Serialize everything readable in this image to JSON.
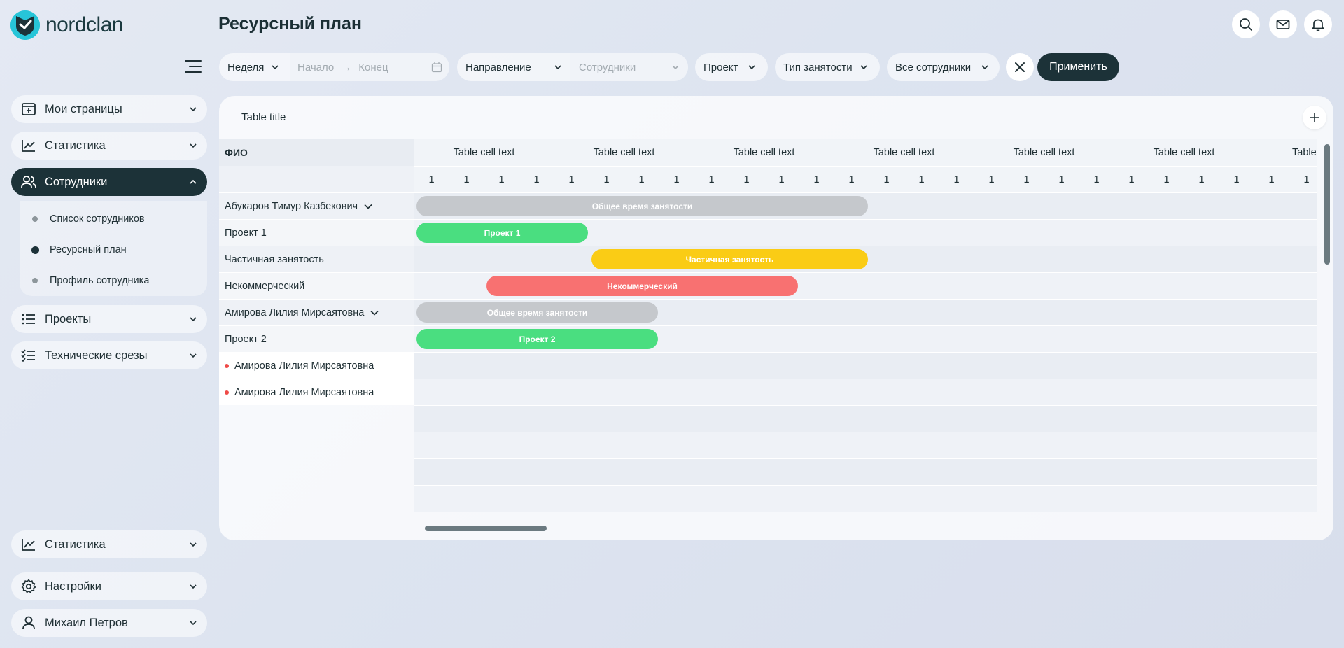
{
  "brand": {
    "name": "nordclan",
    "accent": "#27c5d8",
    "dark": "#1c3238"
  },
  "page": {
    "title": "Ресурсный план"
  },
  "sidebar": {
    "items": [
      {
        "label": "Мои страницы",
        "icon": "add-page-icon"
      },
      {
        "label": "Статистика",
        "icon": "chart-line-icon"
      },
      {
        "label": "Сотрудники",
        "icon": "users-icon",
        "active": true
      },
      {
        "label": "Проекты",
        "icon": "list-icon"
      },
      {
        "label": "Технические срезы",
        "icon": "checklist-icon"
      }
    ],
    "subitems": [
      {
        "label": "Список сотрудников"
      },
      {
        "label": "Ресурсный план",
        "current": true
      },
      {
        "label": "Профиль сотрудника"
      }
    ],
    "bottom": [
      {
        "label": "Статистика",
        "icon": "chart-line-icon"
      },
      {
        "label": "Настройки",
        "icon": "gear-icon"
      },
      {
        "label": "Михаил Петров",
        "icon": "user-icon"
      }
    ]
  },
  "filters": {
    "period": "Неделя",
    "start_placeholder": "Начало",
    "end_placeholder": "Конец",
    "direction": "Направление",
    "employees_placeholder": "Сотрудники",
    "project": "Проект",
    "employment_type": "Тип занятости",
    "all_employees": "Все сотрудники",
    "apply": "Применить"
  },
  "table": {
    "title": "Table title",
    "name_header": "ФИО",
    "groups": [
      "Table cell text",
      "Table cell text",
      "Table cell text",
      "Table cell text",
      "Table cell text",
      "Table cell text",
      "Table"
    ],
    "week_values": [
      "1",
      "1",
      "1",
      "1",
      "1",
      "1",
      "1",
      "1",
      "1",
      "1",
      "1",
      "1",
      "1",
      "1",
      "1",
      "1",
      "1",
      "1",
      "1",
      "1",
      "1",
      "1",
      "1",
      "1",
      "1",
      "1"
    ],
    "rows": [
      {
        "name": "Абукаров Тимур Казбекович",
        "kind": "person"
      },
      {
        "name": "Проект 1",
        "kind": "sub"
      },
      {
        "name": "Частичная занятость",
        "kind": "sub"
      },
      {
        "name": "Некоммерческий",
        "kind": "sub"
      },
      {
        "name": "Амирова Лилия Мирсаятовна",
        "kind": "person"
      },
      {
        "name": "Проект 2",
        "kind": "sub"
      },
      {
        "name": "Амирова Лилия Мирсаятовна",
        "kind": "member"
      },
      {
        "name": "Амирова Лилия Мирсаятовна",
        "kind": "member"
      }
    ],
    "bars": [
      {
        "row": 0,
        "start": 0,
        "span": 13,
        "label": "Общее время занятости",
        "color": "#c5c8cc"
      },
      {
        "row": 1,
        "start": 0,
        "span": 5,
        "label": "Проект 1",
        "color": "#4ade80"
      },
      {
        "row": 2,
        "start": 5,
        "span": 8,
        "label": "Частичная занятость",
        "color": "#facc15"
      },
      {
        "row": 3,
        "start": 2,
        "span": 9,
        "label": "Некоммерческий",
        "color": "#f87171"
      },
      {
        "row": 4,
        "start": 0,
        "span": 7,
        "label": "Общее время занятости",
        "color": "#c5c8cc"
      },
      {
        "row": 5,
        "start": 0,
        "span": 7,
        "label": "Проект 2",
        "color": "#4ade80"
      }
    ]
  }
}
